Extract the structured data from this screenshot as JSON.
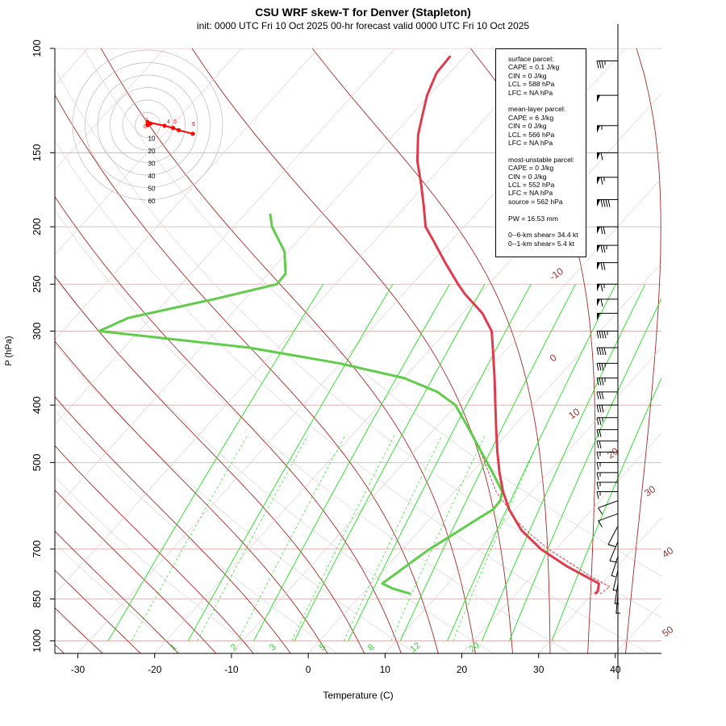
{
  "title": "CSU WRF skew-T for Denver (Stapleton)",
  "subtitle": "init: 0000 UTC Fri 10 Oct 2025     00-hr forecast valid 0000 UTC Fri 10 Oct 2025",
  "colors": {
    "temperature": "#dd3c4e",
    "dewpoint": "#5fcc4a",
    "isotherm": "#a52a2a",
    "mixing_ratio": "#22dd22",
    "pressure_line": "#d8a8a8",
    "hodograph": "#ff0000"
  },
  "stats": {
    "surface_parcel": [
      "surface parcel:",
      "CAPE = 0.1 J/kg",
      "CIN = 0 J/kg",
      "LCL = 588 hPa",
      "LFC = NA hPa"
    ],
    "mean_layer_parcel": [
      "mean-layer parcel:",
      "CAPE = 6 J/kg",
      "CIN = 0 J/kg",
      "LCL = 566 hPa",
      "LFC = NA hPa"
    ],
    "most_unstable_parcel": [
      "most-unstable parcel:",
      "CAPE = 0 J/kg",
      "CIN = 0 J/kg",
      "LCL = 552 hPa",
      "LFC = NA hPa",
      "source = 562 hPa"
    ],
    "pw": [
      "PW =  16.53 mm"
    ],
    "shear": [
      "0--6-km shear= 34.4 kt",
      "0--1-km shear= 5.4 kt"
    ]
  },
  "hodograph": {
    "ring_labels": [
      "10",
      "20",
      "30",
      "40",
      "50",
      "60"
    ],
    "point_labels": [
      "0",
      "1",
      "4",
      "5",
      "6"
    ],
    "trace": [
      [
        0,
        0
      ],
      [
        1,
        -2
      ],
      [
        0,
        -4
      ],
      [
        6,
        1
      ],
      [
        9,
        4
      ],
      [
        11,
        7
      ],
      [
        16,
        12
      ]
    ]
  },
  "chart_data": {
    "type": "line",
    "xlabel": "Temperature (C)",
    "ylabel": "P (hPa)",
    "xlim": [
      -33,
      46
    ],
    "ylim": [
      1050,
      100
    ],
    "y_scale": "log",
    "x_ticks": [
      -30,
      -20,
      -10,
      0,
      10,
      20,
      30,
      40
    ],
    "y_ticks": [
      100,
      150,
      200,
      250,
      300,
      400,
      500,
      700,
      850,
      1000
    ],
    "isotherm_labels": [
      {
        "t": -10,
        "label": "-10"
      },
      {
        "t": 0,
        "label": "0"
      },
      {
        "t": 10,
        "label": "10"
      },
      {
        "t": 20,
        "label": "20"
      },
      {
        "t": 30,
        "label": "30"
      },
      {
        "t": 40,
        "label": "40"
      },
      {
        "t": 50,
        "label": "50"
      }
    ],
    "mixing_ratio_labels": [
      "1",
      "2",
      "3",
      "5",
      "8",
      "12",
      "20"
    ],
    "series": [
      {
        "name": "Temperature",
        "points": [
          [
            833,
            30.3
          ],
          [
            825,
            30.4
          ],
          [
            800,
            29.6
          ],
          [
            750,
            23.6
          ],
          [
            700,
            18.0
          ],
          [
            650,
            13.2
          ],
          [
            600,
            9.2
          ],
          [
            560,
            6.3
          ],
          [
            520,
            3.6
          ],
          [
            480,
            0.9
          ],
          [
            440,
            -1.9
          ],
          [
            400,
            -4.9
          ],
          [
            360,
            -8.2
          ],
          [
            320,
            -12.0
          ],
          [
            300,
            -14.1
          ],
          [
            280,
            -17.4
          ],
          [
            260,
            -21.9
          ],
          [
            250,
            -24.0
          ],
          [
            230,
            -28.2
          ],
          [
            210,
            -32.6
          ],
          [
            200,
            -35.0
          ],
          [
            185,
            -37.6
          ],
          [
            170,
            -40.5
          ],
          [
            155,
            -43.8
          ],
          [
            140,
            -46.8
          ],
          [
            130,
            -48.5
          ],
          [
            120,
            -50.3
          ],
          [
            110,
            -51.7
          ],
          [
            103,
            -51.9
          ]
        ]
      },
      {
        "name": "Dewpoint",
        "points": [
          [
            833,
            6.3
          ],
          [
            815,
            3.2
          ],
          [
            800,
            1.4
          ],
          [
            770,
            2.0
          ],
          [
            740,
            2.6
          ],
          [
            700,
            3.5
          ],
          [
            660,
            4.9
          ],
          [
            620,
            6.3
          ],
          [
            600,
            7.1
          ],
          [
            580,
            7.0
          ],
          [
            560,
            6.2
          ],
          [
            520,
            2.7
          ],
          [
            480,
            -1.2
          ],
          [
            440,
            -5.4
          ],
          [
            400,
            -10.1
          ],
          [
            380,
            -14.0
          ],
          [
            360,
            -20.0
          ],
          [
            340,
            -30.2
          ],
          [
            320,
            -43.7
          ],
          [
            300,
            -65.2
          ],
          [
            285,
            -63.0
          ],
          [
            265,
            -54.0
          ],
          [
            250,
            -47.6
          ],
          [
            240,
            -47.7
          ],
          [
            220,
            -50.5
          ],
          [
            200,
            -55.0
          ],
          [
            190,
            -56.8
          ]
        ]
      },
      {
        "name": "Parcel",
        "points": [
          [
            833,
            31.0
          ],
          [
            810,
            31.4
          ],
          [
            780,
            27.9
          ],
          [
            740,
            23.6
          ],
          [
            700,
            19.0
          ],
          [
            660,
            14.8
          ],
          [
            620,
            10.8
          ],
          [
            588,
            8.1
          ],
          [
            560,
            5.4
          ],
          [
            520,
            2.2
          ],
          [
            480,
            -1.3
          ],
          [
            440,
            -5.2
          ]
        ]
      }
    ],
    "wind_barbs_kt": [
      {
        "p": 105,
        "spd": 35
      },
      {
        "p": 120,
        "spd": 50
      },
      {
        "p": 135,
        "spd": 55
      },
      {
        "p": 150,
        "spd": 60
      },
      {
        "p": 165,
        "spd": 65
      },
      {
        "p": 180,
        "spd": 90
      },
      {
        "p": 200,
        "spd": 70
      },
      {
        "p": 215,
        "spd": 75
      },
      {
        "p": 230,
        "spd": 70
      },
      {
        "p": 250,
        "spd": 65
      },
      {
        "p": 265,
        "spd": 60
      },
      {
        "p": 280,
        "spd": 50
      },
      {
        "p": 300,
        "spd": 45
      },
      {
        "p": 320,
        "spd": 40
      },
      {
        "p": 340,
        "spd": 35
      },
      {
        "p": 360,
        "spd": 35
      },
      {
        "p": 380,
        "spd": 30
      },
      {
        "p": 400,
        "spd": 30
      },
      {
        "p": 420,
        "spd": 25
      },
      {
        "p": 440,
        "spd": 20
      },
      {
        "p": 460,
        "spd": 20
      },
      {
        "p": 480,
        "spd": 15
      },
      {
        "p": 500,
        "spd": 15
      },
      {
        "p": 520,
        "spd": 15
      },
      {
        "p": 540,
        "spd": 15
      },
      {
        "p": 560,
        "spd": 15
      },
      {
        "p": 580,
        "spd": 10
      },
      {
        "p": 610,
        "spd": 10
      },
      {
        "p": 640,
        "spd": 10
      },
      {
        "p": 680,
        "spd": 10
      },
      {
        "p": 720,
        "spd": 5
      },
      {
        "p": 760,
        "spd": 5
      },
      {
        "p": 800,
        "spd": 5
      },
      {
        "p": 830,
        "spd": 5
      }
    ]
  }
}
